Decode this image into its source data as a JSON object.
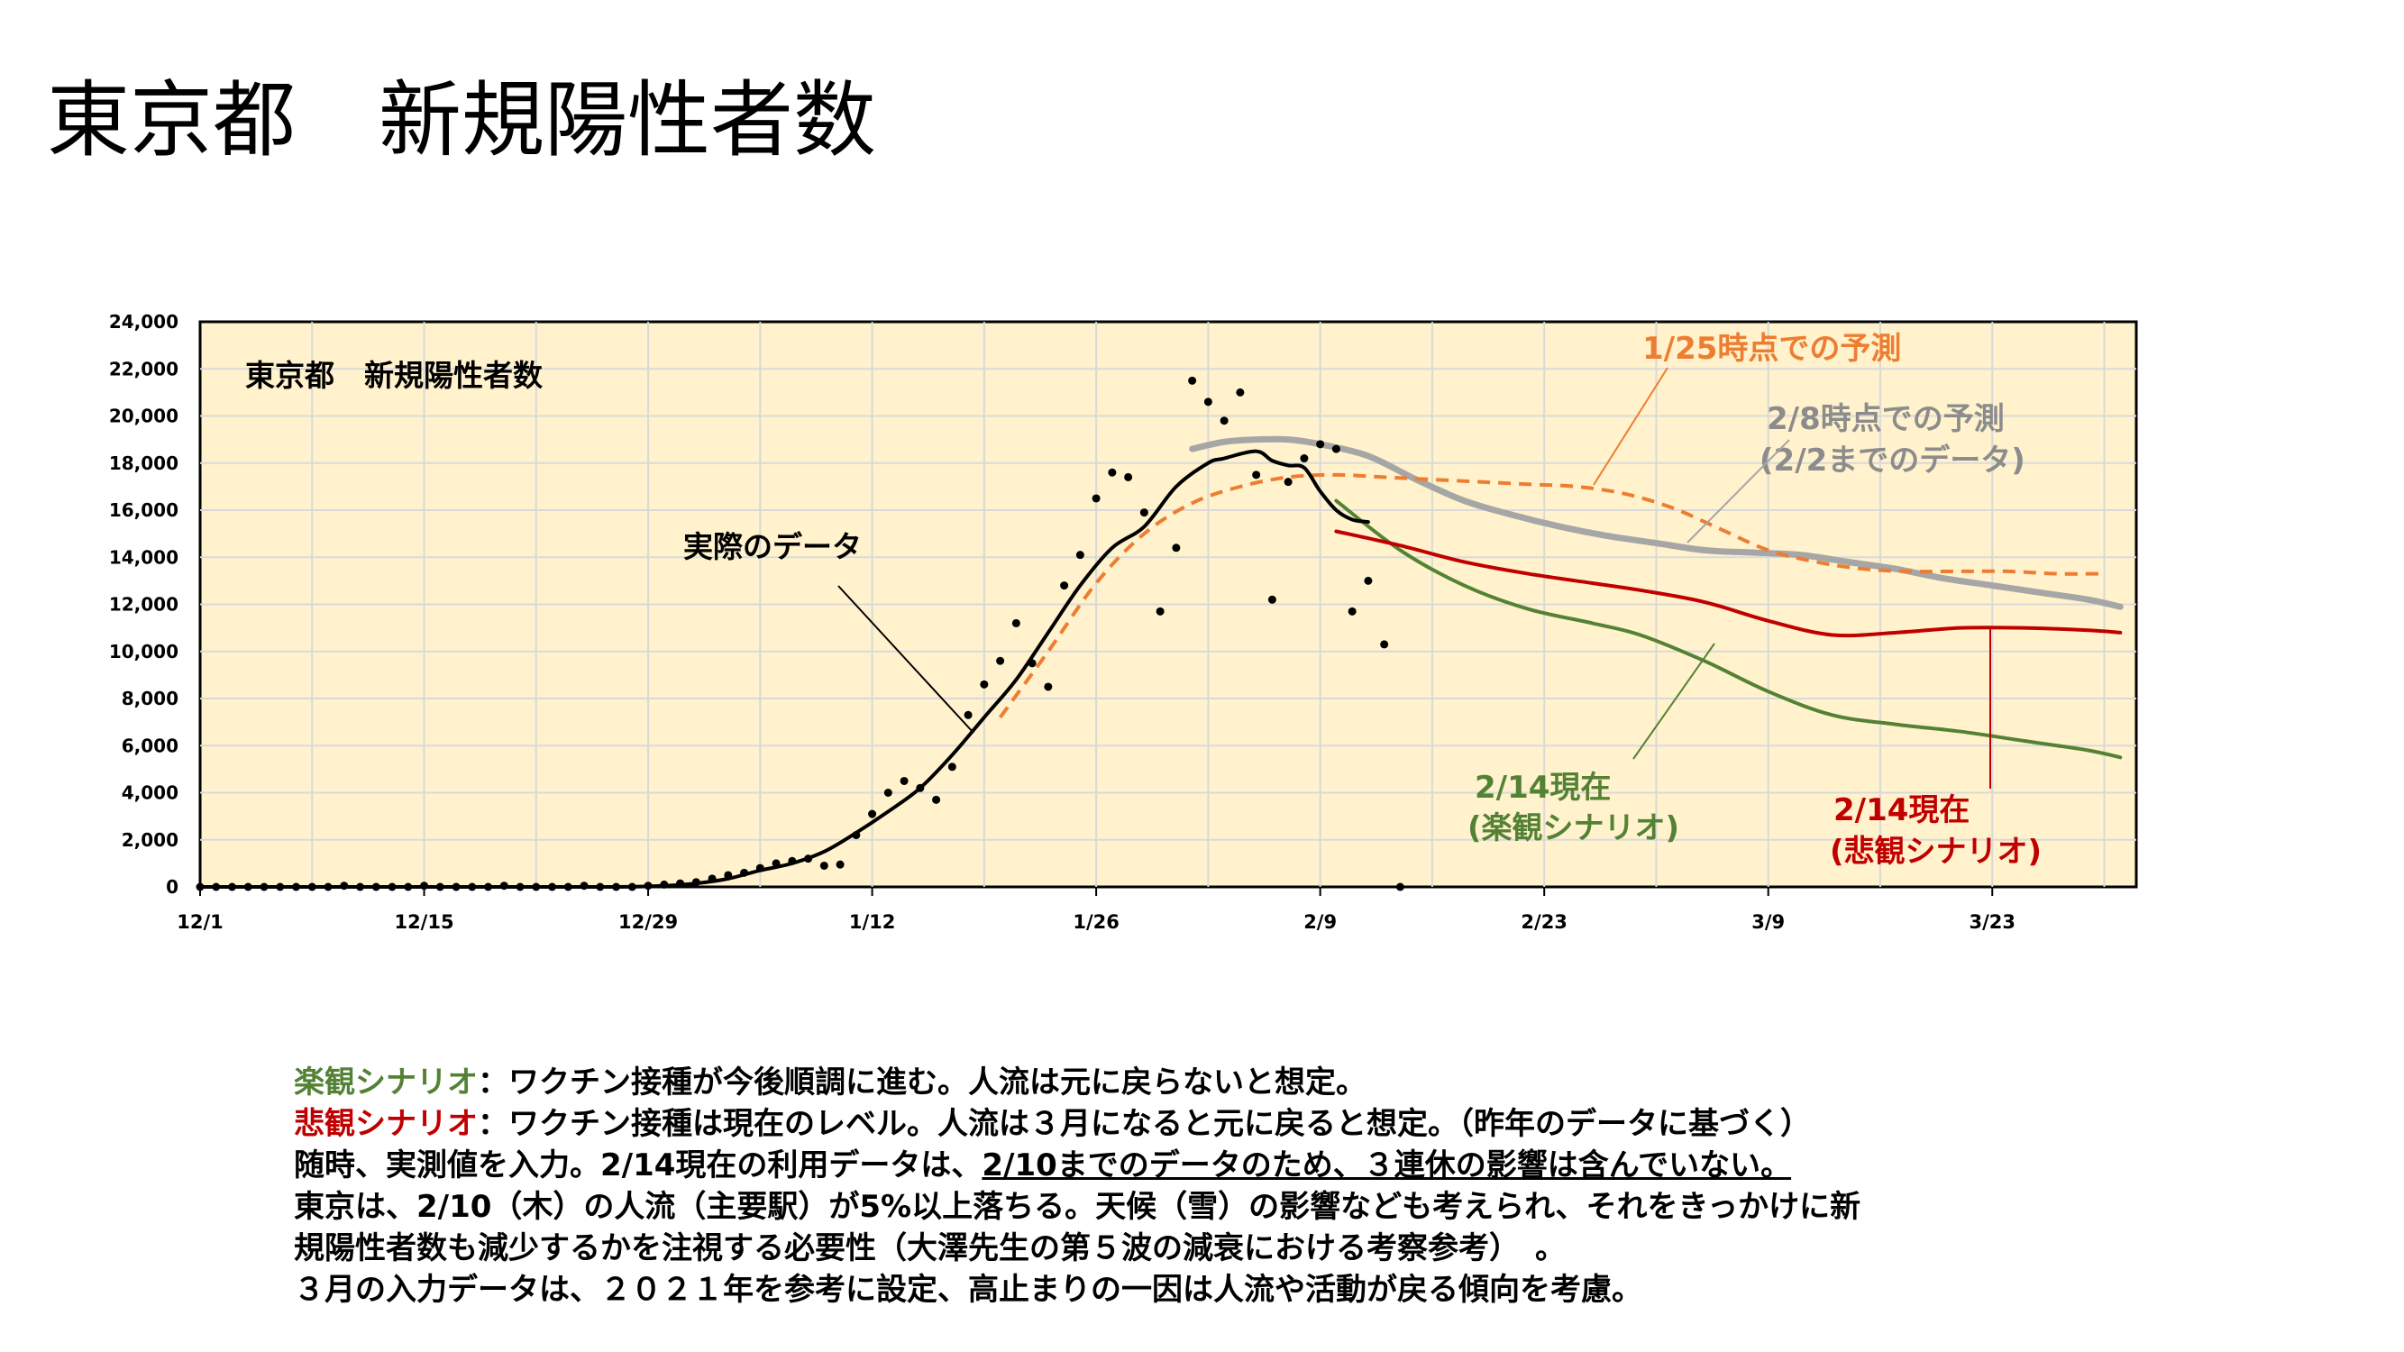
{
  "page_title": "東京都　新規陽性者数",
  "colors": {
    "plot_bg": "#fff2cc",
    "actual": "#000000",
    "forecast_0125": "#ed7d31",
    "forecast_0208": "#a6a6a6",
    "optimistic": "#548235",
    "pessimistic": "#c00000",
    "grid": "#d9d9d9"
  },
  "chart_data": {
    "type": "line",
    "title": "東京都　新規陽性者数",
    "x_unit": "date",
    "y_ticks": [
      "0",
      "2,000",
      "4,000",
      "6,000",
      "8,000",
      "10,000",
      "12,000",
      "14,000",
      "16,000",
      "18,000",
      "20,000",
      "22,000",
      "24,000"
    ],
    "ylim": [
      0,
      24000
    ],
    "x_tick_labels": [
      "12/1",
      "12/15",
      "12/29",
      "1/12",
      "1/26",
      "2/9",
      "2/23",
      "3/9",
      "3/23"
    ],
    "x_tick_dates": [
      "12-01",
      "12-15",
      "12-29",
      "01-12",
      "01-26",
      "02-09",
      "02-23",
      "03-09",
      "03-23"
    ],
    "grid": true,
    "series": [
      {
        "name": "実際のデータ",
        "style": "line",
        "x": [
          "12-01",
          "12-10",
          "12-20",
          "12-27",
          "12-30",
          "01-01",
          "01-03",
          "01-05",
          "01-07",
          "01-09",
          "01-11",
          "01-13",
          "01-15",
          "01-17",
          "01-19",
          "01-21",
          "01-23",
          "01-25",
          "01-27",
          "01-29",
          "01-31",
          "02-02",
          "02-03",
          "02-05",
          "02-06",
          "02-07",
          "02-08",
          "02-09",
          "02-10",
          "02-11",
          "02-12"
        ],
        "y": [
          0,
          0,
          0,
          0,
          50,
          150,
          350,
          700,
          1000,
          1500,
          2300,
          3200,
          4200,
          5600,
          7200,
          8800,
          10800,
          12800,
          14400,
          15300,
          17000,
          18000,
          18200,
          18500,
          18100,
          17900,
          17800,
          16800,
          16000,
          15600,
          15500
        ]
      },
      {
        "name": "実測値",
        "style": "points",
        "x": [
          "12-01",
          "12-02",
          "12-03",
          "12-04",
          "12-05",
          "12-06",
          "12-07",
          "12-08",
          "12-09",
          "12-10",
          "12-11",
          "12-12",
          "12-13",
          "12-14",
          "12-15",
          "12-16",
          "12-17",
          "12-18",
          "12-19",
          "12-20",
          "12-21",
          "12-22",
          "12-23",
          "12-24",
          "12-25",
          "12-26",
          "12-27",
          "12-28",
          "12-29",
          "12-30",
          "12-31",
          "01-01",
          "01-02",
          "01-03",
          "01-04",
          "01-05",
          "01-06",
          "01-07",
          "01-08",
          "01-09",
          "01-10",
          "01-11",
          "01-12",
          "01-13",
          "01-14",
          "01-15",
          "01-16",
          "01-17",
          "01-18",
          "01-19",
          "01-20",
          "01-21",
          "01-22",
          "01-23",
          "01-24",
          "01-25",
          "01-26",
          "01-27",
          "01-28",
          "01-29",
          "01-30",
          "01-31",
          "02-01",
          "02-02",
          "02-03",
          "02-04",
          "02-05",
          "02-06",
          "02-07",
          "02-08",
          "02-09",
          "02-10",
          "02-11",
          "02-12",
          "02-13",
          "02-14"
        ],
        "y": [
          0,
          0,
          0,
          0,
          0,
          0,
          0,
          0,
          0,
          50,
          0,
          0,
          0,
          0,
          50,
          0,
          0,
          0,
          0,
          50,
          0,
          0,
          0,
          0,
          50,
          0,
          0,
          0,
          50,
          100,
          150,
          200,
          350,
          500,
          600,
          800,
          1000,
          1100,
          1200,
          900,
          950,
          2200,
          3100,
          4000,
          4500,
          4200,
          3700,
          5100,
          7300,
          8600,
          9600,
          11200,
          9500,
          8500,
          12800,
          14100,
          16500,
          17600,
          17400,
          15900,
          11700,
          14400,
          21500,
          20600,
          19800,
          21000,
          17500,
          12200,
          17200,
          18200,
          18800,
          18600,
          11700,
          13000,
          10300,
          0
        ]
      },
      {
        "name": "1/25時点での予測",
        "style": "dashed",
        "x": [
          "01-20",
          "01-23",
          "01-26",
          "01-29",
          "02-01",
          "02-04",
          "02-07",
          "02-10",
          "02-13",
          "02-16",
          "02-19",
          "02-22",
          "02-25",
          "02-28",
          "03-03",
          "03-06",
          "03-09",
          "03-12",
          "03-15",
          "03-18",
          "03-21",
          "03-24",
          "03-27",
          "03-30"
        ],
        "y": [
          7200,
          10000,
          12900,
          15000,
          16300,
          17000,
          17400,
          17500,
          17400,
          17300,
          17200,
          17100,
          17000,
          16700,
          16100,
          15200,
          14300,
          13800,
          13500,
          13400,
          13400,
          13400,
          13300,
          13300
        ]
      },
      {
        "name": "2/8時点での予測",
        "style": "line",
        "x": [
          "02-01",
          "02-03",
          "02-05",
          "02-07",
          "02-09",
          "02-12",
          "02-15",
          "02-18",
          "02-21",
          "02-24",
          "02-27",
          "03-02",
          "03-05",
          "03-08",
          "03-11",
          "03-14",
          "03-17",
          "03-20",
          "03-23",
          "03-26",
          "03-29",
          "03-31"
        ],
        "y": [
          18600,
          18900,
          19000,
          19000,
          18800,
          18300,
          17300,
          16400,
          15800,
          15300,
          14900,
          14600,
          14300,
          14200,
          14100,
          13800,
          13500,
          13100,
          12800,
          12500,
          12200,
          11900
        ]
      },
      {
        "name": "2/14現在（楽観シナリオ）",
        "style": "line",
        "x": [
          "02-10",
          "02-14",
          "02-18",
          "02-22",
          "02-26",
          "03-01",
          "03-05",
          "03-09",
          "03-13",
          "03-17",
          "03-21",
          "03-25",
          "03-29",
          "03-31"
        ],
        "y": [
          16400,
          14300,
          12800,
          11800,
          11200,
          10700,
          9600,
          8300,
          7300,
          6900,
          6600,
          6200,
          5800,
          5500
        ]
      },
      {
        "name": "2/14現在（悲観シナリオ）",
        "style": "line",
        "x": [
          "02-10",
          "02-14",
          "02-18",
          "02-22",
          "02-26",
          "03-01",
          "03-05",
          "03-09",
          "03-13",
          "03-17",
          "03-21",
          "03-25",
          "03-29",
          "03-31"
        ],
        "y": [
          15100,
          14500,
          13800,
          13300,
          12900,
          12600,
          12100,
          11300,
          10700,
          10800,
          11000,
          11000,
          10900,
          10800
        ]
      }
    ],
    "annotations": {
      "inner_title": "東京都　新規陽性者数",
      "actual_label": "実際のデータ",
      "forecast_0125_label": "1/25時点での予測",
      "forecast_0208_label_1": "2/8時点での予測",
      "forecast_0208_label_2": "(2/2までのデータ)",
      "optimistic_label_1": "2/14現在",
      "optimistic_label_2": "(楽観シナリオ)",
      "pessimistic_label_1": "2/14現在",
      "pessimistic_label_2": "(悲観シナリオ)"
    }
  },
  "notes": {
    "line1_head": "楽観シナリオ",
    "line1_body": "：ワクチン接種が今後順調に進む。人流は元に戻らないと想定。",
    "line2_head": "悲観シナリオ",
    "line2_body": "：ワクチン接種は現在のレベル。人流は３月になると元に戻ると想定。（昨年のデータに基づく）",
    "line3_a": "随時、実測値を入力。2/14現在の利用データは、",
    "line3_b": "2/10までのデータのため、３連休の影響は含んでいない。",
    "line4": "東京は、2/10（木）の人流（主要駅）が5%以上落ちる。天候（雪）の影響なども考えられ、それをきっかけに新",
    "line5": "規陽性者数も減少するかを注視する必要性（大澤先生の第５波の減衰における考察参考）　。",
    "line6": "３月の入力データは、２０２１年を参考に設定、高止まりの一因は人流や活動が戻る傾向を考慮。"
  }
}
